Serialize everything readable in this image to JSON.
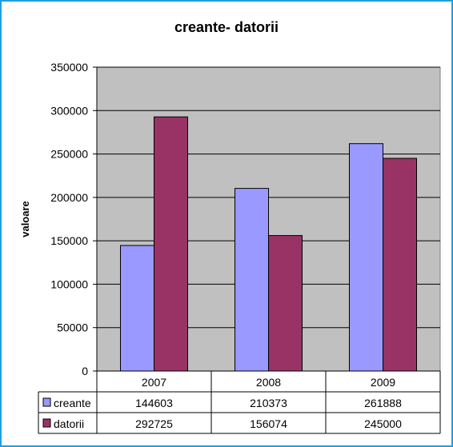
{
  "chart_data": {
    "type": "bar",
    "title": "creante- datorii",
    "ylabel": "valoare",
    "xlabel": "",
    "categories": [
      "2007",
      "2008",
      "2009"
    ],
    "series": [
      {
        "name": "creante",
        "values": [
          144603,
          210373,
          261888
        ],
        "color": "#9999ff"
      },
      {
        "name": "datorii",
        "values": [
          292725,
          156074,
          245000
        ],
        "color": "#993366"
      }
    ],
    "ylim": [
      0,
      350000
    ],
    "yticks": [
      "0",
      "50000",
      "100000",
      "150000",
      "200000",
      "250000",
      "300000",
      "350000"
    ],
    "grid": true,
    "plot_background": "#c0c0c0",
    "frame_color": "#1ea0e6",
    "legend": "data table"
  }
}
